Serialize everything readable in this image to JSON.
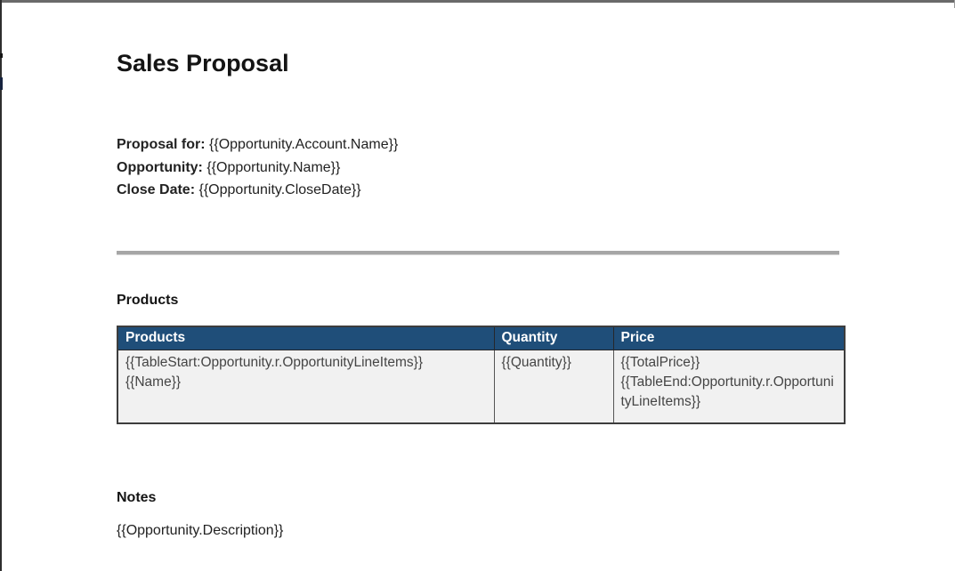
{
  "document": {
    "title": "Sales Proposal",
    "fields": [
      {
        "label": "Proposal for:",
        "value": "{{Opportunity.Account.Name}}"
      },
      {
        "label": "Opportunity:",
        "value": "{{Opportunity.Name}}"
      },
      {
        "label": "Close Date:",
        "value": "{{Opportunity.CloseDate}}"
      }
    ],
    "products": {
      "heading": "Products",
      "table": {
        "headers": [
          "Products",
          "Quantity",
          "Price"
        ],
        "row": {
          "products_lines": [
            "{{TableStart:Opportunity.r.OpportunityLineItems}}",
            "{{Name}}"
          ],
          "quantity_lines": [
            "{{Quantity}}"
          ],
          "price_lines": [
            "{{TotalPrice}}",
            "{{TableEnd:Opportunity.r.OpportunityLineItems}}"
          ]
        }
      }
    },
    "notes": {
      "heading": "Notes",
      "body": "{{Opportunity.Description}}"
    }
  },
  "colors": {
    "table_header_bg": "#1F4E79",
    "table_header_text": "#FFFFFF",
    "table_body_bg": "#F1F1F1",
    "divider": "#A6A6A6"
  }
}
